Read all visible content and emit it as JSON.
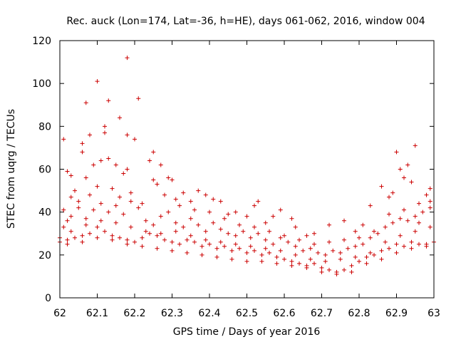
{
  "chart_data": {
    "type": "scatter",
    "title": "Rec. auck (Lon=174, Lat=-36, h=HE), days 061-062, 2016, window 004",
    "xlabel": "GPS time / Days of year 2016",
    "ylabel": "STEC from uqrg / TECUs",
    "xlim": [
      62,
      63
    ],
    "ylim": [
      0,
      120
    ],
    "xticks": [
      62,
      62.1,
      62.2,
      62.3,
      62.4,
      62.5,
      62.6,
      62.7,
      62.8,
      62.9,
      63
    ],
    "xtick_labels": [
      "62",
      "62.1",
      "62.2",
      "62.3",
      "62.4",
      "62.5",
      "62.6",
      "62.7",
      "62.8",
      "62.9",
      "63"
    ],
    "yticks": [
      0,
      20,
      40,
      60,
      80,
      100,
      120
    ],
    "ytick_labels": [
      "0",
      "20",
      "40",
      "60",
      "80",
      "100",
      "120"
    ],
    "grid": false,
    "legend": "none",
    "marker": "+",
    "color": "#cc0000",
    "series": [
      {
        "points": [
          [
            62.01,
            74
          ],
          [
            62.02,
            59
          ],
          [
            62.03,
            57
          ],
          [
            62.04,
            50
          ],
          [
            62.06,
            72
          ],
          [
            62.07,
            91
          ],
          [
            62.08,
            76
          ],
          [
            62.1,
            101
          ],
          [
            62.12,
            80
          ],
          [
            62.12,
            77
          ],
          [
            62.13,
            92
          ],
          [
            62.16,
            84
          ],
          [
            62.18,
            112
          ],
          [
            62.18,
            76
          ],
          [
            62.2,
            74
          ],
          [
            62.21,
            93
          ],
          [
            62.06,
            68
          ],
          [
            62.07,
            56
          ],
          [
            62.09,
            62
          ],
          [
            62.11,
            64
          ],
          [
            62.13,
            65
          ],
          [
            62.15,
            62
          ],
          [
            62.17,
            58
          ],
          [
            62.18,
            60
          ],
          [
            62.24,
            64
          ],
          [
            62.25,
            68
          ],
          [
            62.27,
            62
          ],
          [
            62.29,
            56
          ],
          [
            62.3,
            55
          ],
          [
            62.26,
            53
          ],
          [
            62.25,
            55
          ],
          [
            62.31,
            46
          ],
          [
            62.33,
            49
          ],
          [
            62.35,
            45
          ],
          [
            62.37,
            50
          ],
          [
            62.39,
            48
          ],
          [
            62.41,
            46
          ],
          [
            62.43,
            45
          ],
          [
            62.45,
            39
          ],
          [
            62.47,
            40
          ],
          [
            62.5,
            38
          ],
          [
            62.52,
            43
          ],
          [
            62.53,
            45
          ],
          [
            62.55,
            35
          ],
          [
            62.57,
            38
          ],
          [
            62.59,
            41
          ],
          [
            62.62,
            37
          ],
          [
            62.63,
            33
          ],
          [
            62.66,
            29
          ],
          [
            62.68,
            30
          ],
          [
            62.72,
            34
          ],
          [
            62.76,
            36
          ],
          [
            62.79,
            31
          ],
          [
            62.81,
            34
          ],
          [
            62.83,
            43
          ],
          [
            62.86,
            52
          ],
          [
            62.88,
            47
          ],
          [
            62.89,
            49
          ],
          [
            62.9,
            68
          ],
          [
            62.91,
            60
          ],
          [
            62.92,
            56
          ],
          [
            62.93,
            62
          ],
          [
            62.94,
            54
          ],
          [
            62.95,
            71
          ],
          [
            62.96,
            44
          ],
          [
            62.98,
            48
          ],
          [
            62.99,
            51
          ],
          [
            62.0,
            28
          ],
          [
            62.01,
            33
          ],
          [
            62.02,
            36
          ],
          [
            62.03,
            38
          ],
          [
            62.05,
            42
          ],
          [
            62.07,
            37
          ],
          [
            62.09,
            41
          ],
          [
            62.11,
            44
          ],
          [
            62.13,
            40
          ],
          [
            62.15,
            43
          ],
          [
            62.17,
            39
          ],
          [
            62.19,
            45
          ],
          [
            62.21,
            42
          ],
          [
            62.23,
            36
          ],
          [
            62.25,
            34
          ],
          [
            62.27,
            38
          ],
          [
            62.29,
            40
          ],
          [
            62.31,
            35
          ],
          [
            62.33,
            33
          ],
          [
            62.35,
            37
          ],
          [
            62.37,
            34
          ],
          [
            62.39,
            31
          ],
          [
            62.41,
            35
          ],
          [
            62.43,
            32
          ],
          [
            62.45,
            30
          ],
          [
            62.47,
            29
          ],
          [
            62.49,
            31
          ],
          [
            62.51,
            28
          ],
          [
            62.53,
            30
          ],
          [
            62.55,
            27
          ],
          [
            62.57,
            25
          ],
          [
            62.59,
            28
          ],
          [
            62.61,
            26
          ],
          [
            62.63,
            24
          ],
          [
            62.65,
            22
          ],
          [
            62.67,
            23
          ],
          [
            62.69,
            21
          ],
          [
            62.71,
            20
          ],
          [
            62.73,
            22
          ],
          [
            62.75,
            21
          ],
          [
            62.77,
            23
          ],
          [
            62.79,
            24
          ],
          [
            62.81,
            25
          ],
          [
            62.83,
            28
          ],
          [
            62.85,
            30
          ],
          [
            62.87,
            33
          ],
          [
            62.89,
            35
          ],
          [
            62.91,
            37
          ],
          [
            62.93,
            36
          ],
          [
            62.95,
            38
          ],
          [
            62.97,
            40
          ],
          [
            62.99,
            42
          ],
          [
            62.0,
            26
          ],
          [
            62.02,
            27
          ],
          [
            62.04,
            28
          ],
          [
            62.06,
            29
          ],
          [
            62.08,
            30
          ],
          [
            62.1,
            33
          ],
          [
            62.12,
            31
          ],
          [
            62.14,
            29
          ],
          [
            62.16,
            28
          ],
          [
            62.18,
            27
          ],
          [
            62.2,
            26
          ],
          [
            62.22,
            28
          ],
          [
            62.24,
            30
          ],
          [
            62.26,
            29
          ],
          [
            62.28,
            27
          ],
          [
            62.3,
            26
          ],
          [
            62.32,
            25
          ],
          [
            62.34,
            27
          ],
          [
            62.36,
            26
          ],
          [
            62.38,
            24
          ],
          [
            62.4,
            25
          ],
          [
            62.42,
            23
          ],
          [
            62.44,
            24
          ],
          [
            62.46,
            22
          ],
          [
            62.48,
            23
          ],
          [
            62.5,
            21
          ],
          [
            62.52,
            22
          ],
          [
            62.54,
            20
          ],
          [
            62.56,
            21
          ],
          [
            62.58,
            19
          ],
          [
            62.6,
            18
          ],
          [
            62.62,
            17
          ],
          [
            62.64,
            16
          ],
          [
            62.66,
            15
          ],
          [
            62.68,
            16
          ],
          [
            62.7,
            14
          ],
          [
            62.72,
            13
          ],
          [
            62.74,
            12
          ],
          [
            62.76,
            13
          ],
          [
            62.78,
            15
          ],
          [
            62.8,
            17
          ],
          [
            62.82,
            19
          ],
          [
            62.84,
            20
          ],
          [
            62.86,
            22
          ],
          [
            62.88,
            23
          ],
          [
            62.9,
            25
          ],
          [
            62.92,
            24
          ],
          [
            62.94,
            26
          ],
          [
            62.96,
            25
          ],
          [
            62.98,
            24
          ],
          [
            63.0,
            26
          ],
          [
            62.01,
            41
          ],
          [
            62.03,
            47
          ],
          [
            62.05,
            45
          ],
          [
            62.08,
            48
          ],
          [
            62.1,
            52
          ],
          [
            62.14,
            51
          ],
          [
            62.16,
            47
          ],
          [
            62.19,
            49
          ],
          [
            62.22,
            44
          ],
          [
            62.28,
            48
          ],
          [
            62.32,
            43
          ],
          [
            62.36,
            41
          ],
          [
            62.4,
            40
          ],
          [
            62.44,
            37
          ],
          [
            62.48,
            34
          ],
          [
            62.52,
            33
          ],
          [
            62.56,
            31
          ],
          [
            62.6,
            29
          ],
          [
            62.64,
            27
          ],
          [
            62.68,
            25
          ],
          [
            62.72,
            26
          ],
          [
            62.76,
            27
          ],
          [
            62.8,
            28
          ],
          [
            62.84,
            31
          ],
          [
            62.88,
            39
          ],
          [
            62.92,
            41
          ],
          [
            62.96,
            35
          ],
          [
            62.99,
            45
          ],
          [
            62.03,
            31
          ],
          [
            62.07,
            34
          ],
          [
            62.11,
            36
          ],
          [
            62.15,
            35
          ],
          [
            62.19,
            33
          ],
          [
            62.23,
            31
          ],
          [
            62.27,
            30
          ],
          [
            62.31,
            31
          ],
          [
            62.35,
            29
          ],
          [
            62.39,
            27
          ],
          [
            62.43,
            26
          ],
          [
            62.47,
            25
          ],
          [
            62.51,
            24
          ],
          [
            62.55,
            23
          ],
          [
            62.59,
            22
          ],
          [
            62.63,
            20
          ],
          [
            62.67,
            18
          ],
          [
            62.71,
            17
          ],
          [
            62.75,
            18
          ],
          [
            62.79,
            19
          ],
          [
            62.83,
            21
          ],
          [
            62.87,
            26
          ],
          [
            62.91,
            29
          ],
          [
            62.95,
            31
          ],
          [
            62.99,
            33
          ],
          [
            62.02,
            25
          ],
          [
            62.06,
            26
          ],
          [
            62.1,
            28
          ],
          [
            62.14,
            27
          ],
          [
            62.18,
            25
          ],
          [
            62.22,
            24
          ],
          [
            62.26,
            23
          ],
          [
            62.3,
            22
          ],
          [
            62.34,
            21
          ],
          [
            62.38,
            20
          ],
          [
            62.42,
            19
          ],
          [
            62.46,
            18
          ],
          [
            62.5,
            17
          ],
          [
            62.54,
            17
          ],
          [
            62.58,
            16
          ],
          [
            62.62,
            15
          ],
          [
            62.66,
            14
          ],
          [
            62.7,
            12
          ],
          [
            62.74,
            11
          ],
          [
            62.78,
            12
          ],
          [
            62.82,
            16
          ],
          [
            62.86,
            18
          ],
          [
            62.9,
            21
          ],
          [
            62.94,
            23
          ],
          [
            62.98,
            25
          ]
        ]
      }
    ]
  }
}
